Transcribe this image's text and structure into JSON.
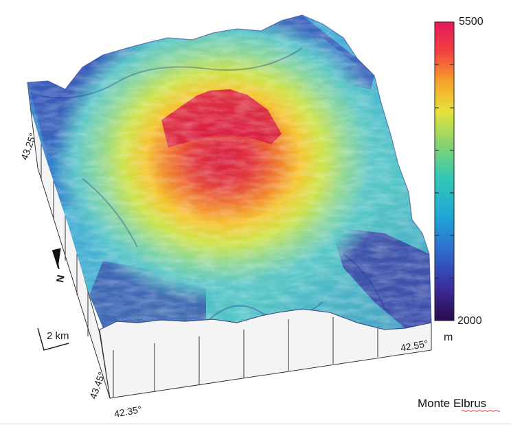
{
  "map": {
    "caption": "Monte Elbrus",
    "lat_labels": [
      "43.25°",
      "43.45°"
    ],
    "lon_labels": [
      "42.35°",
      "42.55°"
    ],
    "scale_bar_label": "2 km",
    "north_label": "N",
    "colorbar": {
      "min_label": "2000",
      "max_label": "5500",
      "unit": "m",
      "min_value": 2000,
      "max_value": 5500,
      "colormap": [
        "#2a0a4a",
        "#3b2d9c",
        "#2f65c9",
        "#1fa7d8",
        "#33c8b4",
        "#8fd46a",
        "#e7e33a",
        "#f7a32a",
        "#f2423f",
        "#e5175c"
      ]
    },
    "summit_elevation_m": 5500
  }
}
